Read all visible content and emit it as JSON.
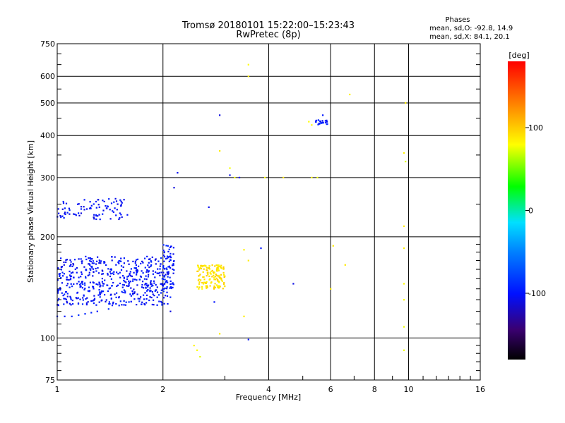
{
  "chart_data": {
    "type": "scatter",
    "title": "Tromsø 20180101 15:22:00–15:23:43",
    "subtitle": "RwPretec (8p)",
    "xlabel": "Frequency [MHz]",
    "ylabel": "Stationary phase Virtual Height [km]",
    "x_scale": "log",
    "y_scale": "log",
    "xlim": [
      1,
      16
    ],
    "ylim": [
      75,
      750
    ],
    "x_ticks": [
      1,
      2,
      4,
      6,
      8,
      10,
      16
    ],
    "y_ticks": [
      75,
      100,
      200,
      300,
      400,
      500,
      600,
      750
    ],
    "grid": true,
    "stats": {
      "heading": "Phases",
      "line_o": "mean, sd,O: -92.8, 14.9",
      "line_x": "mean, sd,X:  84.1, 20.1"
    },
    "colorbar": {
      "label": "[deg]",
      "ticks": [
        100,
        0,
        -100
      ],
      "range": [
        -180,
        180
      ]
    },
    "clusters": [
      {
        "name": "o-trace-lower",
        "phase": -95,
        "points": [
          [
            1.0,
            116
          ],
          [
            1.05,
            116
          ],
          [
            1.1,
            116
          ],
          [
            1.15,
            117
          ],
          [
            1.2,
            118
          ],
          [
            1.25,
            119
          ],
          [
            1.3,
            120
          ],
          [
            1.4,
            122
          ],
          [
            1.5,
            125
          ],
          [
            1.6,
            128
          ],
          [
            1.7,
            131
          ],
          [
            1.8,
            134
          ],
          [
            1.9,
            138
          ],
          [
            2.0,
            143
          ],
          [
            2.05,
            148
          ]
        ]
      },
      {
        "name": "o-trace-mass",
        "phase": -100,
        "x_range": [
          1.0,
          2.1
        ],
        "y_range": [
          125,
          175
        ],
        "count": 520
      },
      {
        "name": "o-trace-top",
        "phase": -98,
        "x_range": [
          2.0,
          2.15
        ],
        "y_range": [
          140,
          190
        ],
        "count": 60
      },
      {
        "name": "o-trace-high",
        "phase": -102,
        "x_range": [
          1.0,
          1.6
        ],
        "y_range": [
          225,
          260
        ],
        "count": 90
      },
      {
        "name": "x-cluster",
        "phase": 90,
        "x_range": [
          2.5,
          3.0
        ],
        "y_range": [
          140,
          165
        ],
        "count": 150
      },
      {
        "name": "cluster-430",
        "phase": -95,
        "x_range": [
          5.4,
          5.9
        ],
        "y_range": [
          430,
          445
        ],
        "count": 25
      },
      {
        "name": "sparse",
        "phase": 80,
        "points": [
          [
            3.5,
            650
          ],
          [
            3.5,
            600
          ],
          [
            2.9,
            360
          ],
          [
            3.1,
            320
          ],
          [
            3.2,
            300
          ],
          [
            3.9,
            300
          ],
          [
            4.4,
            300
          ],
          [
            5.3,
            300
          ],
          [
            5.5,
            300
          ],
          [
            5.2,
            440
          ],
          [
            5.3,
            430
          ],
          [
            6.8,
            530
          ],
          [
            9.8,
            500
          ],
          [
            9.7,
            355
          ],
          [
            9.8,
            335
          ],
          [
            9.7,
            215
          ],
          [
            9.7,
            185
          ],
          [
            9.7,
            145
          ],
          [
            9.7,
            130
          ],
          [
            9.7,
            108
          ],
          [
            9.7,
            92
          ],
          [
            3.4,
            183
          ],
          [
            3.5,
            170
          ],
          [
            3.4,
            116
          ],
          [
            2.9,
            103
          ],
          [
            2.5,
            92
          ],
          [
            2.55,
            88
          ],
          [
            2.45,
            95
          ],
          [
            6.1,
            188
          ],
          [
            6.6,
            165
          ],
          [
            6.0,
            140
          ]
        ]
      },
      {
        "name": "sparse-blue",
        "phase": -105,
        "points": [
          [
            2.9,
            460
          ],
          [
            2.2,
            310
          ],
          [
            2.15,
            280
          ],
          [
            2.7,
            245
          ],
          [
            3.1,
            305
          ],
          [
            3.3,
            300
          ],
          [
            3.8,
            185
          ],
          [
            4.7,
            145
          ],
          [
            2.8,
            128
          ],
          [
            3.5,
            99
          ],
          [
            5.7,
            460
          ],
          [
            2.1,
            120
          ]
        ]
      }
    ]
  }
}
